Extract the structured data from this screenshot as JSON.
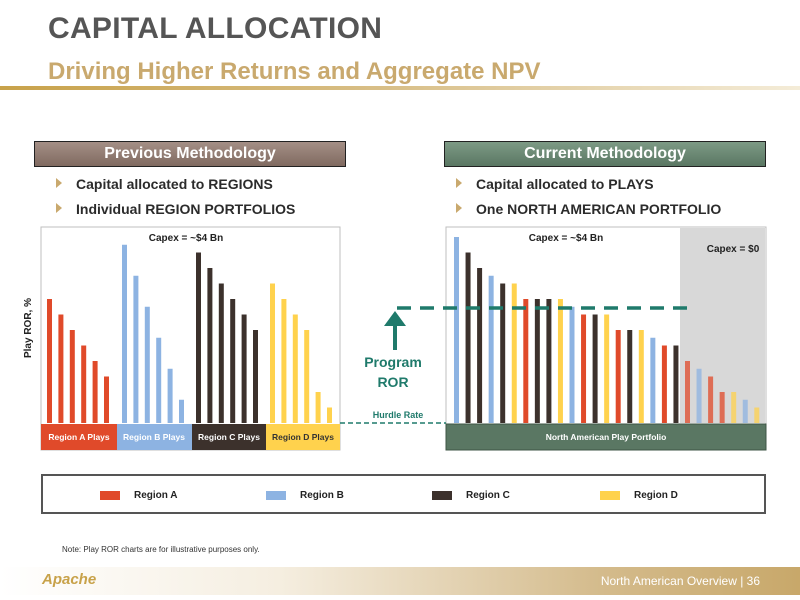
{
  "header": {
    "title": "CAPITAL ALLOCATION",
    "subtitle": "Driving Higher Returns and Aggregate NPV"
  },
  "previous": {
    "label": "Previous Methodology",
    "bullets": [
      "Capital allocated to REGIONS",
      "Individual REGION PORTFOLIOS"
    ],
    "capex_label": "Capex = ~$4 Bn",
    "y_axis_label": "Play ROR, %",
    "region_labels": [
      "Region A Plays",
      "Region B Plays",
      "Region C Plays",
      "Region D Plays"
    ]
  },
  "current": {
    "label": "Current Methodology",
    "bullets": [
      "Capital allocated to PLAYS",
      "One NORTH AMERICAN PORTFOLIO"
    ],
    "capex_label": "Capex = ~$4 Bn",
    "capex_zero_label": "Capex = $0",
    "portfolio_label": "North American Play Portfolio"
  },
  "middle": {
    "program_ror_line1": "Program",
    "program_ror_line2": "ROR",
    "hurdle_rate": "Hurdle Rate"
  },
  "legend": {
    "items": [
      {
        "label": "Region A",
        "color": "#e04a2a"
      },
      {
        "label": "Region B",
        "color": "#8db3e2"
      },
      {
        "label": "Region C",
        "color": "#3c312c"
      },
      {
        "label": "Region D",
        "color": "#ffd24d"
      }
    ]
  },
  "note": "Note: Play ROR charts are for illustrative purposes only.",
  "footer": {
    "text": "North American Overview | 36",
    "logo": "Apache"
  },
  "colors": {
    "A": "#e04a2a",
    "B": "#8db3e2",
    "C": "#3c312c",
    "D": "#ffd24d",
    "program_line": "#1f7a6b"
  },
  "chart_data": [
    {
      "type": "bar",
      "title": "Capex = ~$4 Bn",
      "ylabel": "Play ROR, %",
      "series": [
        {
          "name": "Region A",
          "values": [
            8,
            7,
            6,
            5,
            4,
            3
          ]
        },
        {
          "name": "Region B",
          "values": [
            11.5,
            9.5,
            7.5,
            5.5,
            3.5,
            1.5
          ]
        },
        {
          "name": "Region C",
          "values": [
            11,
            10,
            9,
            8,
            7,
            6
          ]
        },
        {
          "name": "Region D",
          "values": [
            9,
            8,
            7,
            6,
            2,
            1
          ]
        }
      ]
    },
    {
      "type": "bar",
      "title": "Capex = ~$4 Bn",
      "plays": [
        {
          "region": "B",
          "value": 12,
          "funded": true
        },
        {
          "region": "C",
          "value": 11,
          "funded": true
        },
        {
          "region": "C",
          "value": 10,
          "funded": true
        },
        {
          "region": "B",
          "value": 9.5,
          "funded": true
        },
        {
          "region": "C",
          "value": 9,
          "funded": true
        },
        {
          "region": "D",
          "value": 9,
          "funded": true
        },
        {
          "region": "A",
          "value": 8,
          "funded": true
        },
        {
          "region": "C",
          "value": 8,
          "funded": true
        },
        {
          "region": "C",
          "value": 8,
          "funded": true
        },
        {
          "region": "D",
          "value": 8,
          "funded": true
        },
        {
          "region": "B",
          "value": 7.5,
          "funded": true
        },
        {
          "region": "A",
          "value": 7,
          "funded": true
        },
        {
          "region": "C",
          "value": 7,
          "funded": true
        },
        {
          "region": "D",
          "value": 7,
          "funded": true
        },
        {
          "region": "A",
          "value": 6,
          "funded": true
        },
        {
          "region": "C",
          "value": 6,
          "funded": true
        },
        {
          "region": "D",
          "value": 6,
          "funded": true
        },
        {
          "region": "B",
          "value": 5.5,
          "funded": true
        },
        {
          "region": "A",
          "value": 5,
          "funded": true
        },
        {
          "region": "C",
          "value": 5,
          "funded": true
        },
        {
          "region": "A",
          "value": 4,
          "funded": false
        },
        {
          "region": "B",
          "value": 3.5,
          "funded": false
        },
        {
          "region": "A",
          "value": 3,
          "funded": false
        },
        {
          "region": "A",
          "value": 2,
          "funded": false
        },
        {
          "region": "D",
          "value": 2,
          "funded": false
        },
        {
          "region": "B",
          "value": 1.5,
          "funded": false
        },
        {
          "region": "D",
          "value": 1,
          "funded": false
        }
      ]
    }
  ]
}
